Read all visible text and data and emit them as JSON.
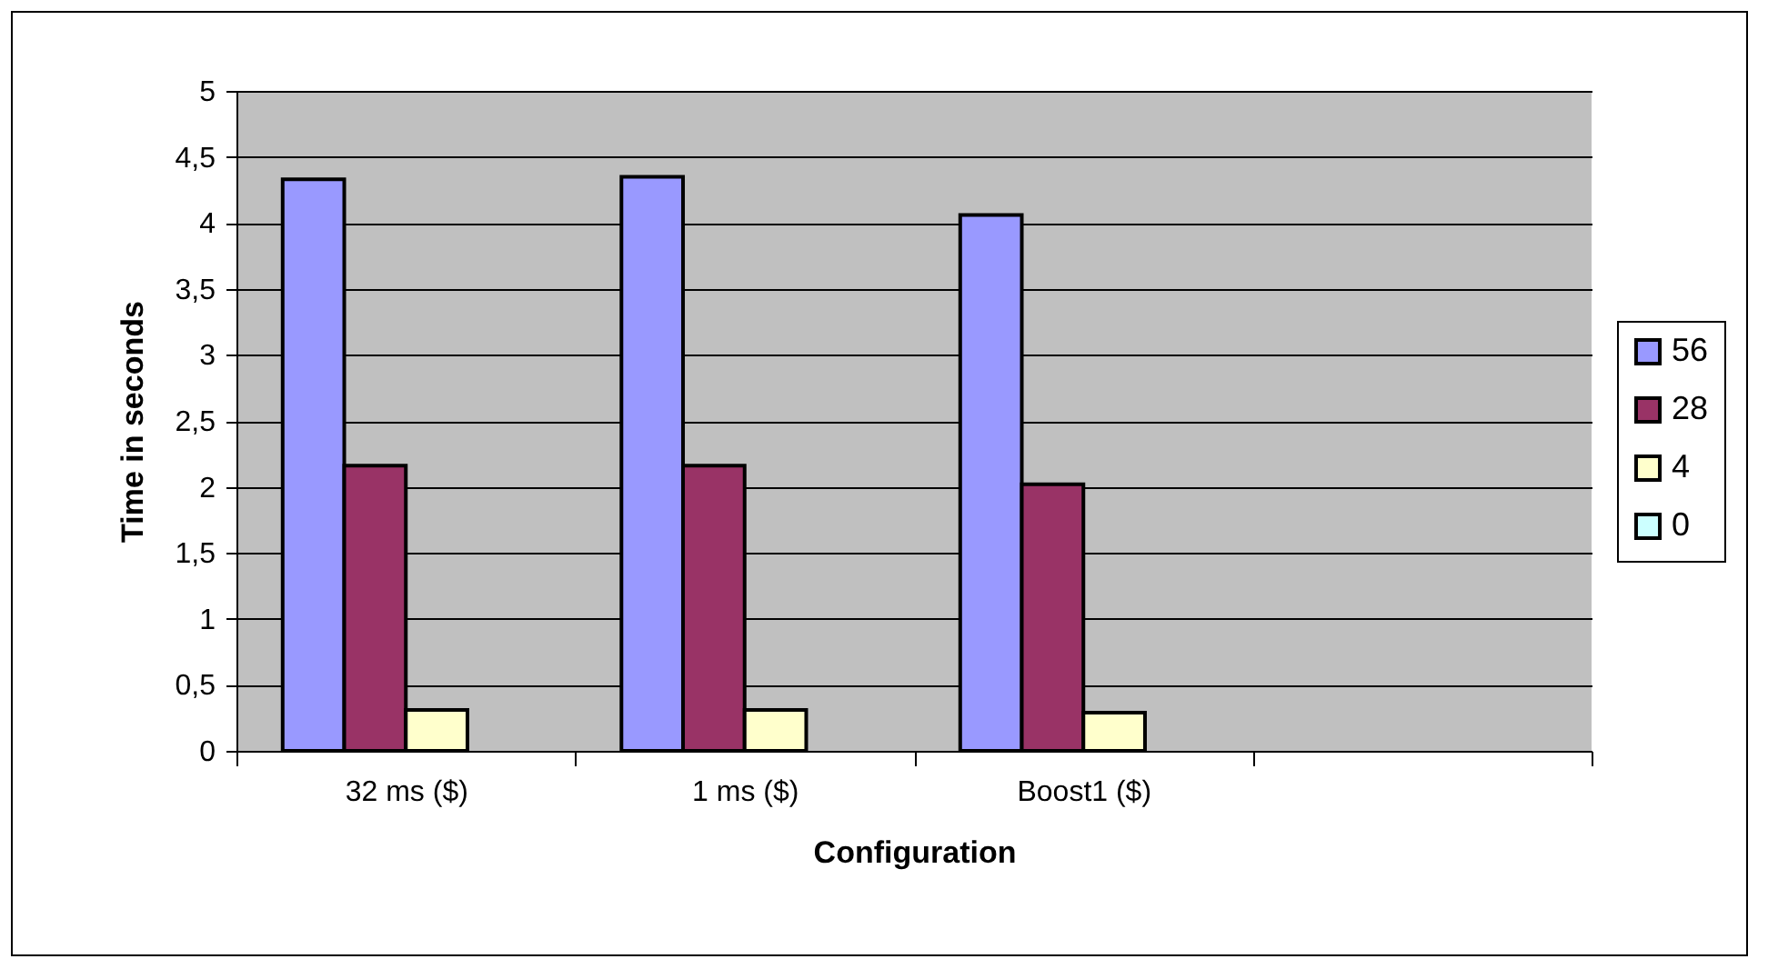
{
  "chart_data": {
    "type": "bar",
    "xlabel": "Configuration",
    "ylabel": "Time in seconds",
    "categories": [
      "32 ms ($)",
      "1 ms ($)",
      "Boost1 ($)",
      null
    ],
    "series": [
      {
        "name": "56",
        "color": "#9999ff",
        "values": [
          4.33,
          4.35,
          4.06,
          null
        ]
      },
      {
        "name": "28",
        "color": "#993366",
        "values": [
          2.16,
          2.16,
          2.02,
          null
        ]
      },
      {
        "name": "4",
        "color": "#ffffcc",
        "values": [
          0.31,
          0.31,
          0.29,
          null
        ]
      },
      {
        "name": "0",
        "color": "#ccffff",
        "values": [
          0,
          0,
          0,
          null
        ]
      }
    ],
    "ylim": [
      0,
      5
    ],
    "yticks": [
      0,
      {
        "value": 0.5,
        "label": "0,5"
      },
      1,
      {
        "value": 1.5,
        "label": "1,5"
      },
      2,
      {
        "value": 2.5,
        "label": "2,5"
      },
      3,
      {
        "value": 3.5,
        "label": "3,5"
      },
      4,
      {
        "value": 4.5,
        "label": "4,5"
      },
      5
    ],
    "grid": "y",
    "legend": "right"
  }
}
